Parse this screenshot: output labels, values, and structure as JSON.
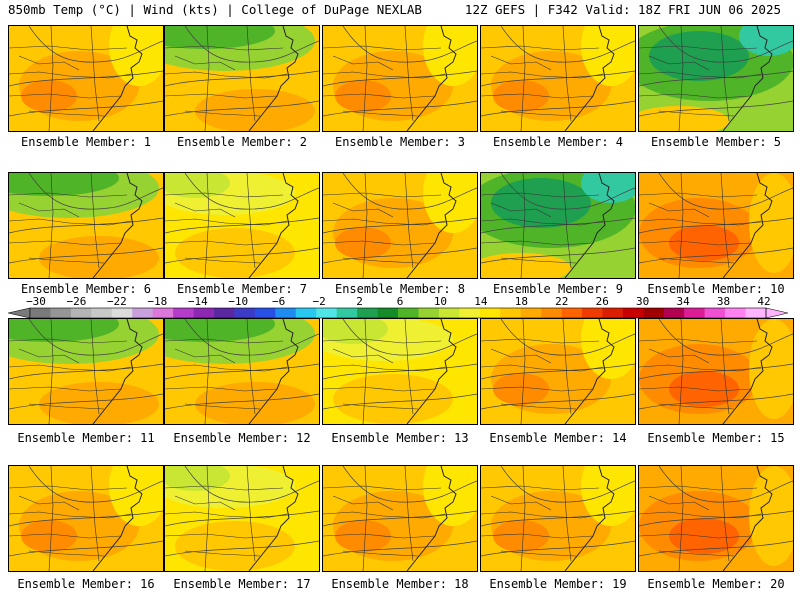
{
  "header": {
    "left": "850mb Temp (°C) | Wind (kts) | College of DuPage NEXLAB",
    "right": "12Z GEFS | F342 Valid: 18Z FRI JUN 06 2025"
  },
  "members": [
    {
      "label": "Ensemble Member: 1",
      "theme": "warm"
    },
    {
      "label": "Ensemble Member: 2",
      "theme": "green"
    },
    {
      "label": "Ensemble Member: 3",
      "theme": "warm"
    },
    {
      "label": "Ensemble Member: 4",
      "theme": "warm"
    },
    {
      "label": "Ensemble Member: 5",
      "theme": "cool"
    },
    {
      "label": "Ensemble Member: 6",
      "theme": "green"
    },
    {
      "label": "Ensemble Member: 7",
      "theme": "mild"
    },
    {
      "label": "Ensemble Member: 8",
      "theme": "warm"
    },
    {
      "label": "Ensemble Member: 9",
      "theme": "cool"
    },
    {
      "label": "Ensemble Member: 10",
      "theme": "hot"
    },
    {
      "label": "Ensemble Member: 11",
      "theme": "green"
    },
    {
      "label": "Ensemble Member: 12",
      "theme": "green"
    },
    {
      "label": "Ensemble Member: 13",
      "theme": "mild"
    },
    {
      "label": "Ensemble Member: 14",
      "theme": "warm"
    },
    {
      "label": "Ensemble Member: 15",
      "theme": "hot"
    },
    {
      "label": "Ensemble Member: 16",
      "theme": "warm"
    },
    {
      "label": "Ensemble Member: 17",
      "theme": "mild"
    },
    {
      "label": "Ensemble Member: 18",
      "theme": "warm"
    },
    {
      "label": "Ensemble Member: 19",
      "theme": "warm"
    },
    {
      "label": "Ensemble Member: 20",
      "theme": "hot"
    }
  ],
  "colorbar": {
    "ticks": [
      "−30",
      "−26",
      "−22",
      "−18",
      "−14",
      "−10",
      "−6",
      "−2",
      "2",
      "6",
      "10",
      "14",
      "18",
      "22",
      "26",
      "30",
      "34",
      "38",
      "42"
    ],
    "colors": [
      "#7a7a7a",
      "#969696",
      "#b4b4b4",
      "#c8c8c8",
      "#dcdcdc",
      "#c8a0dc",
      "#dc78dc",
      "#b43cc8",
      "#8c28b4",
      "#5a28a0",
      "#3c3cc8",
      "#2850e6",
      "#1e8cf0",
      "#28c8f0",
      "#50e6e6",
      "#32c8a0",
      "#1ea050",
      "#148c28",
      "#50b428",
      "#96d232",
      "#c8e632",
      "#f0f032",
      "#ffe600",
      "#ffc800",
      "#ffaa00",
      "#ff8c00",
      "#ff6400",
      "#f03c00",
      "#dc1e00",
      "#c80000",
      "#a00000",
      "#b40050",
      "#dc1e96",
      "#f050d2",
      "#ff82f0",
      "#ffb4ff"
    ]
  }
}
